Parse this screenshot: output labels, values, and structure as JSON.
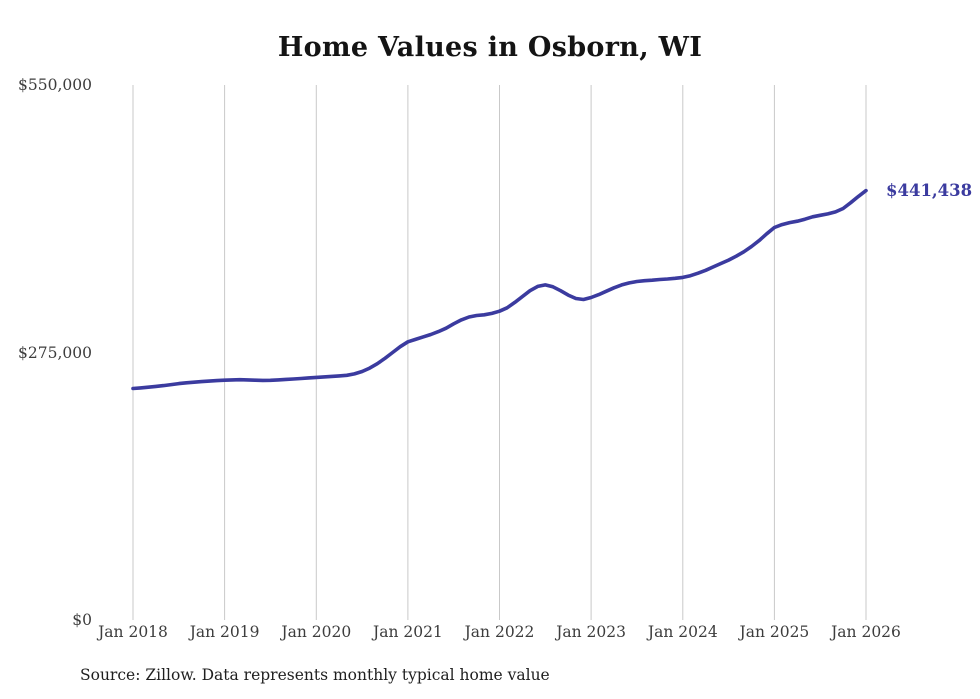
{
  "chart_data": {
    "type": "line",
    "title": "Home Values in Osborn, WI",
    "series_name": "Monthly typical home value",
    "x_start": "Jan 2018",
    "x_end": "Jan 2026",
    "x_frequency": "monthly",
    "x_tick_labels": [
      "Jan 2018",
      "Jan 2019",
      "Jan 2020",
      "Jan 2021",
      "Jan 2022",
      "Jan 2023",
      "Jan 2024",
      "Jan 2025",
      "Jan 2026"
    ],
    "x_tick_indices": [
      0,
      12,
      24,
      36,
      48,
      60,
      72,
      84,
      96
    ],
    "y_tick_labels": [
      "$550,000",
      "$275,000",
      "$0"
    ],
    "y_tick_values": [
      550000,
      275000,
      0
    ],
    "ylim": [
      0,
      550000
    ],
    "grid": "vertical-only",
    "grid_color": "#c9c9c9",
    "line_color": "#3b3b9f",
    "end_label": "$441,438",
    "end_value": 441438,
    "values": [
      238000,
      238600,
      239300,
      240100,
      241000,
      242000,
      243000,
      243800,
      244500,
      245100,
      245600,
      246100,
      246500,
      246800,
      247000,
      246800,
      246500,
      246300,
      246400,
      246800,
      247300,
      247800,
      248300,
      248900,
      249400,
      249900,
      250400,
      250900,
      251600,
      253000,
      255500,
      259000,
      263500,
      269000,
      275000,
      281000,
      286000,
      288500,
      291000,
      293500,
      296500,
      300000,
      304500,
      308500,
      311500,
      313000,
      313800,
      315200,
      317500,
      321000,
      326500,
      332500,
      338500,
      343000,
      344500,
      342500,
      338500,
      334000,
      330500,
      329500,
      331500,
      334500,
      338000,
      341500,
      344500,
      346500,
      348000,
      348800,
      349300,
      350000,
      350600,
      351300,
      352200,
      354000,
      356500,
      359500,
      363000,
      366500,
      370000,
      374000,
      378500,
      384000,
      390000,
      397000,
      403500,
      406500,
      408500,
      410000,
      412000,
      414500,
      416000,
      417500,
      419500,
      423000,
      429000,
      435500,
      441438
    ]
  },
  "footer": {
    "source_note": "Source: Zillow. Data represents monthly typical home value"
  }
}
